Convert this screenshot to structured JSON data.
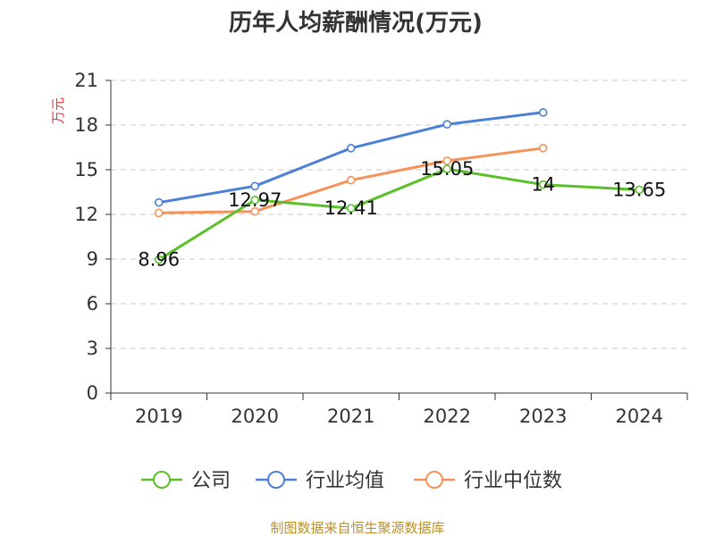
{
  "chart_data": {
    "type": "line",
    "title": "历年人均薪酬情况(万元)",
    "ylabel": "万元",
    "xlabel": "",
    "categories": [
      "2019",
      "2020",
      "2021",
      "2022",
      "2023",
      "2024"
    ],
    "ylim": [
      0,
      21
    ],
    "yticks": [
      0,
      3,
      6,
      9,
      12,
      15,
      18,
      21
    ],
    "grid": true,
    "legend_position": "bottom",
    "series": [
      {
        "name": "公司",
        "color": "#5cc02b",
        "values": [
          8.96,
          12.97,
          12.41,
          15.05,
          14,
          13.65
        ],
        "labels": [
          "8.96",
          "12.97",
          "12.41",
          "15.05",
          "14",
          "13.65"
        ]
      },
      {
        "name": "行业均值",
        "color": "#4c7fd6",
        "values": [
          12.8,
          13.9,
          16.45,
          18.05,
          18.85,
          null
        ]
      },
      {
        "name": "行业中位数",
        "color": "#f5925a",
        "values": [
          12.1,
          12.2,
          14.3,
          15.6,
          16.45,
          null
        ]
      }
    ],
    "source": "制图数据来自恒生聚源数据库"
  }
}
